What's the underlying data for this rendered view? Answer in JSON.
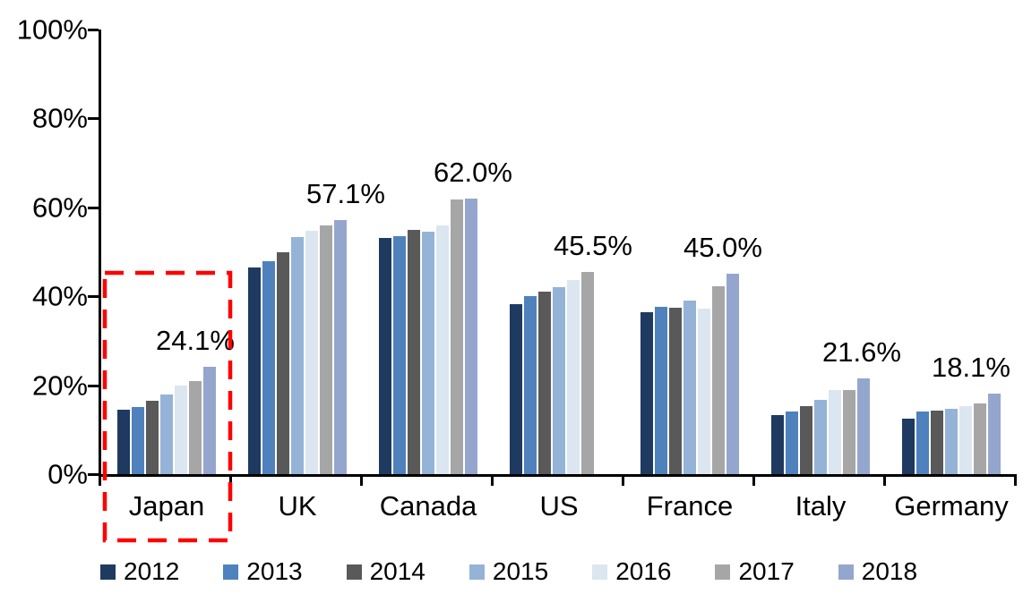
{
  "chart_data": {
    "type": "bar",
    "title": "",
    "xlabel": "",
    "ylabel": "",
    "ylim": [
      0,
      100
    ],
    "grid": false,
    "legend_position": "bottom",
    "yticks": [
      "0%",
      "20%",
      "40%",
      "60%",
      "80%",
      "100%"
    ],
    "categories": [
      "Japan",
      "UK",
      "Canada",
      "US",
      "France",
      "Italy",
      "Germany"
    ],
    "series": [
      {
        "name": "2012",
        "color": "#1F3A60",
        "values": [
          14.5,
          46.5,
          53.1,
          38.3,
          36.5,
          13.3,
          12.5
        ]
      },
      {
        "name": "2013",
        "color": "#4F81BD",
        "values": [
          15.0,
          47.8,
          53.5,
          40.0,
          37.6,
          14.1,
          14.0
        ]
      },
      {
        "name": "2014",
        "color": "#595959",
        "values": [
          16.5,
          49.9,
          54.9,
          41.0,
          37.5,
          15.3,
          14.3
        ]
      },
      {
        "name": "2015",
        "color": "#95B3D7",
        "values": [
          18.0,
          53.3,
          54.6,
          42.1,
          39.1,
          16.8,
          14.7
        ]
      },
      {
        "name": "2016",
        "color": "#DCE6F1",
        "values": [
          20.0,
          54.8,
          56.0,
          43.6,
          37.2,
          18.9,
          15.3
        ]
      },
      {
        "name": "2017",
        "color": "#A6A6A6",
        "values": [
          21.0,
          55.9,
          61.7,
          45.5,
          42.2,
          19.0,
          15.8
        ]
      },
      {
        "name": "2018",
        "color": "#95A6CE",
        "values": [
          24.1,
          57.1,
          62.0,
          null,
          45.0,
          21.6,
          18.1
        ]
      }
    ],
    "data_labels": [
      "24.1%",
      "57.1%",
      "62.0%",
      "45.5%",
      "45.0%",
      "21.6%",
      "18.1%"
    ]
  },
  "annotations": {
    "highlight_box": {
      "target": "Japan",
      "color": "#FF0000",
      "style": "dashed"
    }
  }
}
